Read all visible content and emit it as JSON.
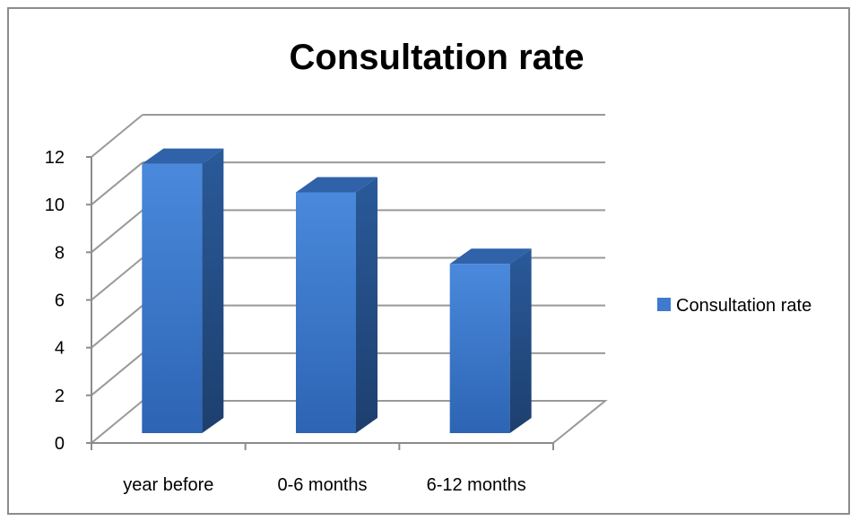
{
  "chart_data": {
    "type": "bar",
    "title": "Consultation rate",
    "categories": [
      "year before",
      "0-6 months",
      "6-12 months"
    ],
    "series": [
      {
        "name": "Consultation rate",
        "values": [
          11.3,
          10.1,
          7.1
        ],
        "color": "#3e7bd0"
      }
    ],
    "ylim": [
      0,
      12
    ],
    "yticks": [
      "0",
      "2",
      "4",
      "6",
      "8",
      "10",
      "12"
    ],
    "grid": true,
    "legend_position": "right",
    "colors": {
      "bar_front": "#3e7bd0",
      "bar_side": "#254f87",
      "bar_top": "#2f62a8",
      "grid": "#999999",
      "axis": "#8c8c8c"
    }
  }
}
